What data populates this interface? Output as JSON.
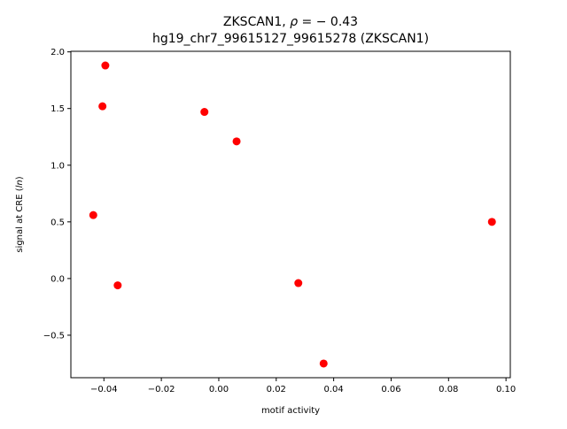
{
  "chart_data": {
    "type": "scatter",
    "title_line1_prefix": "ZKSCAN1, ",
    "title_line1_rho": "ρ",
    "title_line1_suffix": " = − 0.43",
    "title_line2": "hg19_chr7_99615127_99615278 (ZKSCAN1)",
    "xlabel": "motif activity",
    "ylabel_prefix": "signal at CRE (",
    "ylabel_italic": "ln",
    "ylabel_suffix": ")",
    "xlim": [
      -0.0515,
      0.1015
    ],
    "ylim": [
      -0.875,
      2.005
    ],
    "xticks": [
      -0.04,
      -0.02,
      0.0,
      0.02,
      0.04,
      0.06,
      0.08,
      0.1
    ],
    "xtick_labels": [
      "−0.04",
      "−0.02",
      "0.00",
      "0.02",
      "0.04",
      "0.06",
      "0.08",
      "0.10"
    ],
    "yticks": [
      -0.5,
      0.0,
      0.5,
      1.0,
      1.5,
      2.0
    ],
    "ytick_labels": [
      "−0.5",
      "0.0",
      "0.5",
      "1.0",
      "1.5",
      "2.0"
    ],
    "marker_color": "#ff0000",
    "grid": false,
    "points": [
      {
        "x": -0.0395,
        "y": 1.88
      },
      {
        "x": -0.0405,
        "y": 1.52
      },
      {
        "x": -0.005,
        "y": 1.47
      },
      {
        "x": 0.0062,
        "y": 1.21
      },
      {
        "x": -0.0437,
        "y": 0.56
      },
      {
        "x": -0.0352,
        "y": -0.06
      },
      {
        "x": 0.0277,
        "y": -0.04
      },
      {
        "x": 0.0365,
        "y": -0.75
      },
      {
        "x": 0.0951,
        "y": 0.5
      }
    ]
  }
}
